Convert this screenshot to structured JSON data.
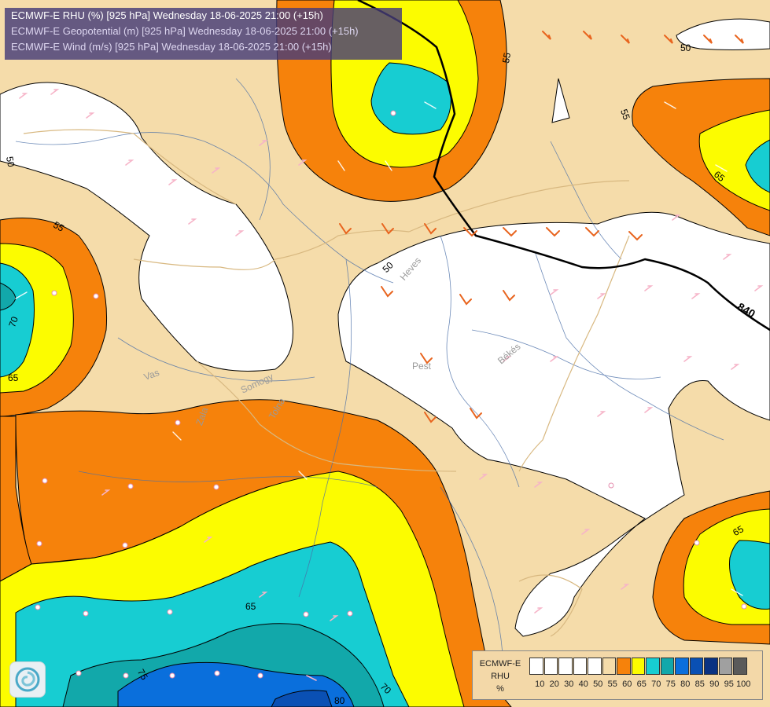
{
  "header": {
    "line1": "ECMWF-E RHU (%) [925 hPa] Wednesday 18-06-2025 21:00 (+15h)",
    "line2": "ECMWF-E Geopotential (m) [925 hPa] Wednesday 18-06-2025 21:00 (+15h)",
    "line3": "ECMWF-E Wind (m/s) [925 hPa] Wednesday 18-06-2025 21:00 (+15h)"
  },
  "legend": {
    "model": "ECMWF-E",
    "param": "RHU",
    "unit": "%",
    "colors": [
      "#ffffff",
      "#ffffff",
      "#ffffff",
      "#ffffff",
      "#ffffff",
      "#f5dcaa",
      "#f6820b",
      "#fcfc00",
      "#17cdd2",
      "#12a8aa",
      "#0a6fdc",
      "#0a50b4",
      "#0a3282",
      "#a0a0a0",
      "#5a5a5a"
    ],
    "labels": [
      "10",
      "20",
      "30",
      "40",
      "50",
      "55",
      "60",
      "65",
      "70",
      "75",
      "80",
      "85",
      "90",
      "95",
      "100"
    ]
  },
  "contour_labels": {
    "rhu": [
      "50",
      "55",
      "55",
      "50",
      "55",
      "70",
      "65",
      "65",
      "50",
      "65",
      "75",
      "70",
      "80"
    ],
    "geopotential": "840"
  },
  "regions": [
    "Heves",
    "Pest",
    "Békés",
    "Vas",
    "Zala",
    "Somogy",
    "Tolna"
  ],
  "colors": {
    "orange": "#f6820b",
    "yellow": "#fcfc00",
    "cyan": "#17cdd2",
    "teal": "#12a8aa",
    "blue": "#0a6fdc",
    "tan": "#f5dcaa"
  },
  "icons": [
    "logo-icon",
    "wind-barb-icon",
    "station-dot-icon"
  ]
}
